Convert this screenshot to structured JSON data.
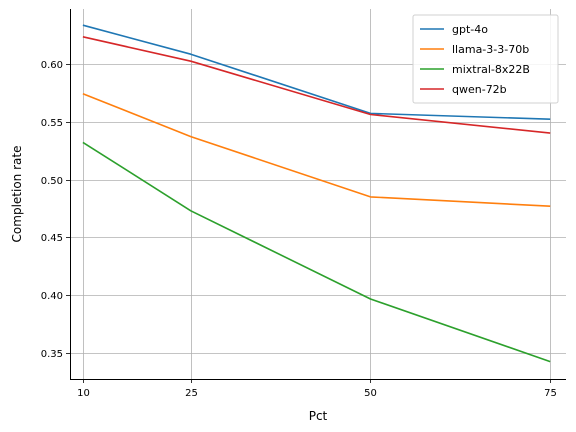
{
  "chart_data": {
    "type": "line",
    "title": "",
    "xlabel": "Pct",
    "ylabel": "Completion rate",
    "x": [
      10,
      25,
      50,
      75
    ],
    "x_ticks": [
      10,
      25,
      50,
      75
    ],
    "x_tick_labels": [
      "10",
      "25",
      "50",
      "75"
    ],
    "xlim": [
      8.2,
      77.2
    ],
    "ylim": [
      0.328,
      0.647
    ],
    "y_ticks": [
      0.35,
      0.4,
      0.45,
      0.5,
      0.55,
      0.6
    ],
    "y_tick_labels": [
      "0.35",
      "0.40",
      "0.45",
      "0.50",
      "0.55",
      "0.60"
    ],
    "grid": true,
    "legend_position": "top-right",
    "series": [
      {
        "name": "gpt-4o",
        "color": "#1f77b4",
        "values": [
          0.633,
          0.608,
          0.557,
          0.552
        ]
      },
      {
        "name": "llama-3-3-70b",
        "color": "#ff7f0e",
        "values": [
          0.574,
          0.537,
          0.485,
          0.477
        ]
      },
      {
        "name": "mixtral-8x22B",
        "color": "#2ca02c",
        "values": [
          0.532,
          0.473,
          0.397,
          0.343
        ]
      },
      {
        "name": "qwen-72b",
        "color": "#d62728",
        "values": [
          0.623,
          0.602,
          0.556,
          0.54
        ]
      }
    ]
  }
}
